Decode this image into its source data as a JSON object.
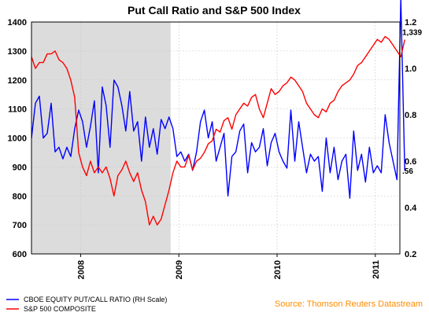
{
  "chart_data": {
    "type": "line",
    "title": "Put Call Ratio and S&P 500 Index",
    "x_ticks": [
      "2008",
      "2009",
      "2010",
      "2011"
    ],
    "x_tick_dates": [
      "2008-01",
      "2009-01",
      "2010-01",
      "2011-01"
    ],
    "x_range": [
      "2007-07",
      "2011-04"
    ],
    "y_left": {
      "ticks": [
        "600",
        "700",
        "800",
        "900",
        "1000",
        "1100",
        "1200",
        "1300",
        "1400"
      ],
      "range": [
        600,
        1400
      ]
    },
    "y_right": {
      "ticks": [
        "0.2",
        "0.4",
        "0.6",
        "0.8",
        "1.0",
        "1.2"
      ],
      "range": [
        0.2,
        1.2
      ]
    },
    "shaded_region": {
      "from": "2007-07",
      "to": "2008-12",
      "color": "#dcdcdc"
    },
    "annotations": [
      {
        "text": "1,339",
        "series": "S&P 500 COMPOSITE",
        "value": 1339
      },
      {
        "text": ".56",
        "series": "CBOE EQUITY PUT/CALL RATIO (RH Scale)",
        "value": 0.56
      }
    ],
    "series": [
      {
        "name": "CBOE EQUITY PUT/CALL RATIO (RH Scale)",
        "axis": "right",
        "color": "#0000ff",
        "x": [
          2007.5,
          2007.54,
          2007.58,
          2007.62,
          2007.66,
          2007.7,
          2007.74,
          2007.78,
          2007.82,
          2007.86,
          2007.9,
          2007.94,
          2007.98,
          2008.02,
          2008.06,
          2008.1,
          2008.14,
          2008.18,
          2008.22,
          2008.26,
          2008.3,
          2008.34,
          2008.38,
          2008.42,
          2008.46,
          2008.5,
          2008.54,
          2008.58,
          2008.62,
          2008.66,
          2008.7,
          2008.74,
          2008.78,
          2008.82,
          2008.86,
          2008.9,
          2008.94,
          2008.98,
          2009.02,
          2009.06,
          2009.1,
          2009.14,
          2009.18,
          2009.22,
          2009.26,
          2009.3,
          2009.34,
          2009.38,
          2009.42,
          2009.46,
          2009.5,
          2009.54,
          2009.58,
          2009.62,
          2009.66,
          2009.7,
          2009.74,
          2009.78,
          2009.82,
          2009.86,
          2009.9,
          2009.94,
          2009.98,
          2010.02,
          2010.06,
          2010.1,
          2010.14,
          2010.18,
          2010.22,
          2010.26,
          2010.3,
          2010.34,
          2010.38,
          2010.42,
          2010.46,
          2010.5,
          2010.54,
          2010.58,
          2010.62,
          2010.66,
          2010.7,
          2010.74,
          2010.78,
          2010.82,
          2010.86,
          2010.9,
          2010.94,
          2010.98,
          2011.02,
          2011.06,
          2011.1,
          2011.14,
          2011.18,
          2011.22,
          2011.26,
          2011.3
        ],
        "y": [
          0.7,
          0.85,
          0.88,
          0.7,
          0.72,
          0.85,
          0.64,
          0.66,
          0.61,
          0.66,
          0.62,
          0.74,
          0.82,
          0.77,
          0.66,
          0.75,
          0.86,
          0.55,
          0.92,
          0.84,
          0.66,
          0.95,
          0.92,
          0.84,
          0.73,
          0.9,
          0.73,
          0.77,
          0.6,
          0.79,
          0.66,
          0.74,
          0.63,
          0.78,
          0.74,
          0.79,
          0.74,
          0.62,
          0.64,
          0.6,
          0.63,
          0.56,
          0.64,
          0.77,
          0.82,
          0.7,
          0.77,
          0.6,
          0.66,
          0.72,
          0.45,
          0.62,
          0.64,
          0.73,
          0.76,
          0.55,
          0.68,
          0.64,
          0.66,
          0.74,
          0.58,
          0.68,
          0.72,
          0.64,
          0.6,
          0.57,
          0.82,
          0.6,
          0.77,
          0.66,
          0.55,
          0.63,
          0.6,
          0.62,
          0.47,
          0.7,
          0.55,
          0.66,
          0.52,
          0.6,
          0.63,
          0.44,
          0.73,
          0.56,
          0.63,
          0.51,
          0.66,
          0.55,
          0.58,
          0.55,
          0.8,
          0.68,
          0.6,
          0.52,
          1.3,
          0.56
        ]
      },
      {
        "name": "S&P 500 COMPOSITE",
        "axis": "left",
        "color": "#ff0000",
        "x": [
          2007.5,
          2007.54,
          2007.58,
          2007.62,
          2007.66,
          2007.7,
          2007.74,
          2007.78,
          2007.82,
          2007.86,
          2007.9,
          2007.94,
          2007.98,
          2008.02,
          2008.06,
          2008.1,
          2008.14,
          2008.18,
          2008.22,
          2008.26,
          2008.3,
          2008.34,
          2008.38,
          2008.42,
          2008.46,
          2008.5,
          2008.54,
          2008.58,
          2008.62,
          2008.66,
          2008.7,
          2008.74,
          2008.78,
          2008.82,
          2008.86,
          2008.9,
          2008.94,
          2008.98,
          2009.02,
          2009.06,
          2009.1,
          2009.14,
          2009.18,
          2009.22,
          2009.26,
          2009.3,
          2009.34,
          2009.38,
          2009.42,
          2009.46,
          2009.5,
          2009.54,
          2009.58,
          2009.62,
          2009.66,
          2009.7,
          2009.74,
          2009.78,
          2009.82,
          2009.86,
          2009.9,
          2009.94,
          2009.98,
          2010.02,
          2010.06,
          2010.1,
          2010.14,
          2010.18,
          2010.22,
          2010.26,
          2010.3,
          2010.34,
          2010.38,
          2010.42,
          2010.46,
          2010.5,
          2010.54,
          2010.58,
          2010.62,
          2010.66,
          2010.7,
          2010.74,
          2010.78,
          2010.82,
          2010.86,
          2010.9,
          2010.94,
          2010.98,
          2011.02,
          2011.06,
          2011.1,
          2011.14,
          2011.18,
          2011.22,
          2011.26,
          2011.3
        ],
        "y": [
          1280,
          1240,
          1260,
          1260,
          1290,
          1290,
          1300,
          1270,
          1260,
          1240,
          1200,
          1140,
          950,
          900,
          870,
          920,
          880,
          900,
          880,
          900,
          860,
          800,
          870,
          890,
          920,
          880,
          850,
          880,
          820,
          780,
          700,
          730,
          700,
          720,
          770,
          820,
          880,
          920,
          900,
          900,
          940,
          890,
          920,
          930,
          950,
          980,
          990,
          1030,
          1020,
          1060,
          1070,
          1030,
          1080,
          1100,
          1120,
          1110,
          1140,
          1150,
          1100,
          1070,
          1120,
          1170,
          1150,
          1160,
          1180,
          1190,
          1210,
          1200,
          1180,
          1160,
          1120,
          1100,
          1080,
          1070,
          1100,
          1090,
          1120,
          1130,
          1160,
          1180,
          1190,
          1200,
          1220,
          1250,
          1260,
          1280,
          1300,
          1320,
          1340,
          1330,
          1350,
          1340,
          1320,
          1300,
          1280,
          1339
        ]
      }
    ]
  },
  "legend": {
    "items": [
      {
        "label": "CBOE EQUITY PUT/CALL RATIO (RH Scale)",
        "color": "#0000ff"
      },
      {
        "label": "S&P 500 COMPOSITE",
        "color": "#ff0000"
      }
    ]
  },
  "source": "Source: Thomson Reuters Datastream"
}
